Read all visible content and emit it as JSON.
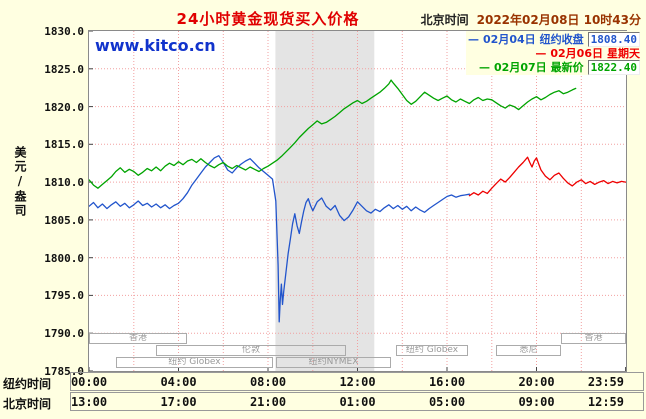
{
  "header": {
    "title": "24小时黄金现货买入价格",
    "timezone_label": "北京时间",
    "datetime": "2022年02月08日 10时43分"
  },
  "watermark": "www.kitco.cn",
  "colors": {
    "background": "#FFFFE1",
    "title_red": "#E00000",
    "grid_pink": "#F2A0A0",
    "band_gray": "#E4E4E4",
    "series_blue": "#2255CC",
    "series_red": "#EE0000",
    "series_green": "#00A400"
  },
  "legend": [
    {
      "date": "02月04日",
      "label": "纽约收盘",
      "value": "1808.40",
      "color": "#2255CC"
    },
    {
      "date": "02月06日",
      "label": "星期天",
      "value": "",
      "color": "#EE0000"
    },
    {
      "date": "02月07日",
      "label": "最新价",
      "value": "1822.40",
      "color": "#00A400"
    }
  ],
  "y_axis": {
    "unit_label": "美元/盎司",
    "ticks": [
      "1830.0",
      "1825.0",
      "1820.0",
      "1815.0",
      "1810.0",
      "1805.0",
      "1800.0",
      "1795.0",
      "1790.0",
      "1785.0"
    ]
  },
  "x_axis": {
    "ny_label": "纽约时间",
    "ny_times": [
      "00:00",
      "04:00",
      "08:00",
      "12:00",
      "16:00",
      "20:00",
      "23:59"
    ],
    "bj_label": "北京时间",
    "bj_times": [
      "13:00",
      "17:00",
      "21:00",
      "01:00",
      "05:00",
      "09:00",
      "12:59"
    ],
    "tick_hours": [
      0,
      4,
      8,
      12,
      16,
      20,
      23.98
    ]
  },
  "sessions": [
    {
      "label": "香港",
      "row": 0,
      "from": 0,
      "to": 4.4
    },
    {
      "label": "香港",
      "row": 0,
      "from": 21.1,
      "to": 24
    },
    {
      "label": "伦敦",
      "row": 1,
      "from": 3,
      "to": 11.5
    },
    {
      "label": "纽约 Globex",
      "row": 1,
      "from": 13.7,
      "to": 16.9
    },
    {
      "label": "悉尼",
      "row": 1,
      "from": 18.2,
      "to": 21.1
    },
    {
      "label": "纽约 Globex",
      "row": 2,
      "from": 1.2,
      "to": 8.2
    },
    {
      "label": "纽约NYMEX",
      "row": 2,
      "from": 8.35,
      "to": 13.5
    }
  ],
  "chart_data": {
    "type": "line",
    "title": "24小时黄金现货买入价格",
    "ylabel": "美元/盎司",
    "ylim": [
      1785,
      1830
    ],
    "xlim_hours": [
      0,
      24
    ],
    "grid": true,
    "grid_x_step_hours": 2,
    "grid_y_step": 5,
    "highlight_band_hours": [
      8.33,
      12.75
    ],
    "legend_position": "top-right",
    "series": [
      {
        "name": "02月04日 纽约收盘",
        "close": 1808.4,
        "color": "#2255CC",
        "points": [
          [
            0.0,
            1806.8
          ],
          [
            0.2,
            1807.3
          ],
          [
            0.4,
            1806.6
          ],
          [
            0.6,
            1807.1
          ],
          [
            0.8,
            1806.5
          ],
          [
            1.0,
            1807.0
          ],
          [
            1.2,
            1807.4
          ],
          [
            1.4,
            1806.8
          ],
          [
            1.6,
            1807.2
          ],
          [
            1.8,
            1806.6
          ],
          [
            2.0,
            1807.0
          ],
          [
            2.2,
            1807.5
          ],
          [
            2.4,
            1806.9
          ],
          [
            2.6,
            1807.2
          ],
          [
            2.8,
            1806.7
          ],
          [
            3.0,
            1807.1
          ],
          [
            3.2,
            1806.6
          ],
          [
            3.4,
            1807.0
          ],
          [
            3.6,
            1806.5
          ],
          [
            3.8,
            1806.9
          ],
          [
            4.0,
            1807.2
          ],
          [
            4.2,
            1807.8
          ],
          [
            4.4,
            1808.6
          ],
          [
            4.6,
            1809.6
          ],
          [
            4.8,
            1810.4
          ],
          [
            5.0,
            1811.2
          ],
          [
            5.2,
            1812.0
          ],
          [
            5.4,
            1812.6
          ],
          [
            5.6,
            1813.2
          ],
          [
            5.8,
            1813.5
          ],
          [
            6.0,
            1812.6
          ],
          [
            6.2,
            1811.6
          ],
          [
            6.4,
            1811.2
          ],
          [
            6.6,
            1811.9
          ],
          [
            6.8,
            1812.4
          ],
          [
            7.0,
            1812.8
          ],
          [
            7.2,
            1813.1
          ],
          [
            7.4,
            1812.5
          ],
          [
            7.6,
            1811.9
          ],
          [
            7.8,
            1811.4
          ],
          [
            8.0,
            1810.9
          ],
          [
            8.2,
            1810.4
          ],
          [
            8.35,
            1807.5
          ],
          [
            8.45,
            1799.0
          ],
          [
            8.5,
            1791.5
          ],
          [
            8.55,
            1794.5
          ],
          [
            8.6,
            1796.5
          ],
          [
            8.65,
            1793.8
          ],
          [
            8.7,
            1795.5
          ],
          [
            8.8,
            1798.0
          ],
          [
            8.9,
            1800.5
          ],
          [
            9.0,
            1802.5
          ],
          [
            9.1,
            1804.5
          ],
          [
            9.2,
            1805.8
          ],
          [
            9.3,
            1804.2
          ],
          [
            9.4,
            1803.2
          ],
          [
            9.5,
            1804.8
          ],
          [
            9.6,
            1806.2
          ],
          [
            9.7,
            1807.3
          ],
          [
            9.8,
            1807.8
          ],
          [
            9.9,
            1806.9
          ],
          [
            10.0,
            1806.2
          ],
          [
            10.2,
            1807.4
          ],
          [
            10.4,
            1807.9
          ],
          [
            10.6,
            1806.8
          ],
          [
            10.8,
            1806.3
          ],
          [
            11.0,
            1806.9
          ],
          [
            11.2,
            1805.6
          ],
          [
            11.4,
            1804.9
          ],
          [
            11.6,
            1805.4
          ],
          [
            11.8,
            1806.3
          ],
          [
            12.0,
            1807.4
          ],
          [
            12.2,
            1806.8
          ],
          [
            12.4,
            1806.2
          ],
          [
            12.6,
            1805.9
          ],
          [
            12.8,
            1806.4
          ],
          [
            13.0,
            1806.1
          ],
          [
            13.2,
            1806.6
          ],
          [
            13.4,
            1807.0
          ],
          [
            13.6,
            1806.5
          ],
          [
            13.8,
            1806.9
          ],
          [
            14.0,
            1806.4
          ],
          [
            14.2,
            1806.8
          ],
          [
            14.4,
            1806.2
          ],
          [
            14.6,
            1806.7
          ],
          [
            14.8,
            1806.3
          ],
          [
            15.0,
            1806.0
          ],
          [
            15.2,
            1806.5
          ],
          [
            15.4,
            1806.9
          ],
          [
            15.6,
            1807.3
          ],
          [
            15.8,
            1807.7
          ],
          [
            16.0,
            1808.1
          ],
          [
            16.2,
            1808.3
          ],
          [
            16.4,
            1808.0
          ],
          [
            16.6,
            1808.2
          ],
          [
            16.8,
            1808.3
          ],
          [
            17.0,
            1808.4
          ]
        ]
      },
      {
        "name": "02月06日 星期天",
        "color": "#EE0000",
        "points": [
          [
            17.0,
            1808.2
          ],
          [
            17.2,
            1808.6
          ],
          [
            17.4,
            1808.3
          ],
          [
            17.6,
            1808.8
          ],
          [
            17.8,
            1808.5
          ],
          [
            18.0,
            1809.2
          ],
          [
            18.2,
            1809.8
          ],
          [
            18.4,
            1810.4
          ],
          [
            18.6,
            1810.0
          ],
          [
            18.8,
            1810.6
          ],
          [
            19.0,
            1811.3
          ],
          [
            19.2,
            1812.0
          ],
          [
            19.4,
            1812.6
          ],
          [
            19.6,
            1813.3
          ],
          [
            19.7,
            1812.6
          ],
          [
            19.8,
            1812.0
          ],
          [
            19.9,
            1812.8
          ],
          [
            20.0,
            1813.2
          ],
          [
            20.1,
            1812.4
          ],
          [
            20.2,
            1811.6
          ],
          [
            20.4,
            1810.8
          ],
          [
            20.6,
            1810.3
          ],
          [
            20.8,
            1810.9
          ],
          [
            21.0,
            1811.2
          ],
          [
            21.2,
            1810.5
          ],
          [
            21.4,
            1809.9
          ],
          [
            21.6,
            1809.5
          ],
          [
            21.8,
            1810.0
          ],
          [
            22.0,
            1810.3
          ],
          [
            22.2,
            1809.8
          ],
          [
            22.4,
            1810.1
          ],
          [
            22.6,
            1809.7
          ],
          [
            22.8,
            1810.0
          ],
          [
            23.0,
            1810.2
          ],
          [
            23.2,
            1809.8
          ],
          [
            23.4,
            1810.1
          ],
          [
            23.6,
            1809.9
          ],
          [
            23.8,
            1810.1
          ],
          [
            23.98,
            1810.0
          ]
        ]
      },
      {
        "name": "02月07日 最新价",
        "last": 1822.4,
        "color": "#00A400",
        "points": [
          [
            0.0,
            1810.3
          ],
          [
            0.2,
            1809.6
          ],
          [
            0.4,
            1809.2
          ],
          [
            0.6,
            1809.7
          ],
          [
            0.8,
            1810.2
          ],
          [
            1.0,
            1810.7
          ],
          [
            1.2,
            1811.4
          ],
          [
            1.4,
            1811.9
          ],
          [
            1.6,
            1811.3
          ],
          [
            1.8,
            1811.7
          ],
          [
            2.0,
            1811.4
          ],
          [
            2.2,
            1810.9
          ],
          [
            2.4,
            1811.3
          ],
          [
            2.6,
            1811.8
          ],
          [
            2.8,
            1811.5
          ],
          [
            3.0,
            1812.0
          ],
          [
            3.2,
            1811.5
          ],
          [
            3.4,
            1812.1
          ],
          [
            3.6,
            1812.5
          ],
          [
            3.8,
            1812.2
          ],
          [
            4.0,
            1812.7
          ],
          [
            4.2,
            1812.3
          ],
          [
            4.4,
            1812.8
          ],
          [
            4.6,
            1813.0
          ],
          [
            4.8,
            1812.6
          ],
          [
            5.0,
            1813.1
          ],
          [
            5.2,
            1812.6
          ],
          [
            5.4,
            1812.2
          ],
          [
            5.6,
            1811.9
          ],
          [
            5.8,
            1812.3
          ],
          [
            6.0,
            1812.6
          ],
          [
            6.2,
            1812.1
          ],
          [
            6.4,
            1811.8
          ],
          [
            6.6,
            1812.2
          ],
          [
            6.8,
            1811.9
          ],
          [
            7.0,
            1811.6
          ],
          [
            7.2,
            1812.0
          ],
          [
            7.4,
            1811.7
          ],
          [
            7.6,
            1811.4
          ],
          [
            7.8,
            1811.8
          ],
          [
            8.0,
            1812.1
          ],
          [
            8.2,
            1812.5
          ],
          [
            8.4,
            1812.9
          ],
          [
            8.6,
            1813.4
          ],
          [
            8.8,
            1814.0
          ],
          [
            9.0,
            1814.6
          ],
          [
            9.2,
            1815.2
          ],
          [
            9.4,
            1815.9
          ],
          [
            9.6,
            1816.5
          ],
          [
            9.8,
            1817.1
          ],
          [
            10.0,
            1817.6
          ],
          [
            10.2,
            1818.1
          ],
          [
            10.4,
            1817.7
          ],
          [
            10.6,
            1817.9
          ],
          [
            10.8,
            1818.3
          ],
          [
            11.0,
            1818.7
          ],
          [
            11.2,
            1819.2
          ],
          [
            11.4,
            1819.7
          ],
          [
            11.6,
            1820.1
          ],
          [
            11.8,
            1820.5
          ],
          [
            12.0,
            1820.8
          ],
          [
            12.2,
            1820.4
          ],
          [
            12.4,
            1820.7
          ],
          [
            12.6,
            1821.1
          ],
          [
            12.8,
            1821.5
          ],
          [
            13.0,
            1821.9
          ],
          [
            13.2,
            1822.4
          ],
          [
            13.4,
            1823.0
          ],
          [
            13.5,
            1823.5
          ],
          [
            13.6,
            1823.1
          ],
          [
            13.8,
            1822.4
          ],
          [
            14.0,
            1821.6
          ],
          [
            14.2,
            1820.8
          ],
          [
            14.4,
            1820.3
          ],
          [
            14.6,
            1820.7
          ],
          [
            14.8,
            1821.3
          ],
          [
            15.0,
            1821.9
          ],
          [
            15.2,
            1821.5
          ],
          [
            15.4,
            1821.1
          ],
          [
            15.6,
            1820.8
          ],
          [
            15.8,
            1821.1
          ],
          [
            16.0,
            1821.4
          ],
          [
            16.2,
            1820.9
          ],
          [
            16.4,
            1820.6
          ],
          [
            16.6,
            1821.0
          ],
          [
            16.8,
            1820.7
          ],
          [
            17.0,
            1820.4
          ],
          [
            17.2,
            1820.9
          ],
          [
            17.4,
            1821.2
          ],
          [
            17.6,
            1820.8
          ],
          [
            17.8,
            1821.0
          ],
          [
            18.0,
            1820.9
          ],
          [
            18.2,
            1820.5
          ],
          [
            18.4,
            1820.1
          ],
          [
            18.6,
            1819.8
          ],
          [
            18.8,
            1820.2
          ],
          [
            19.0,
            1820.0
          ],
          [
            19.2,
            1819.6
          ],
          [
            19.4,
            1820.1
          ],
          [
            19.6,
            1820.6
          ],
          [
            19.8,
            1821.0
          ],
          [
            20.0,
            1821.3
          ],
          [
            20.2,
            1820.9
          ],
          [
            20.4,
            1821.2
          ],
          [
            20.6,
            1821.6
          ],
          [
            20.8,
            1821.9
          ],
          [
            21.0,
            1822.1
          ],
          [
            21.2,
            1821.7
          ],
          [
            21.4,
            1821.9
          ],
          [
            21.6,
            1822.2
          ],
          [
            21.75,
            1822.4
          ]
        ]
      }
    ]
  }
}
